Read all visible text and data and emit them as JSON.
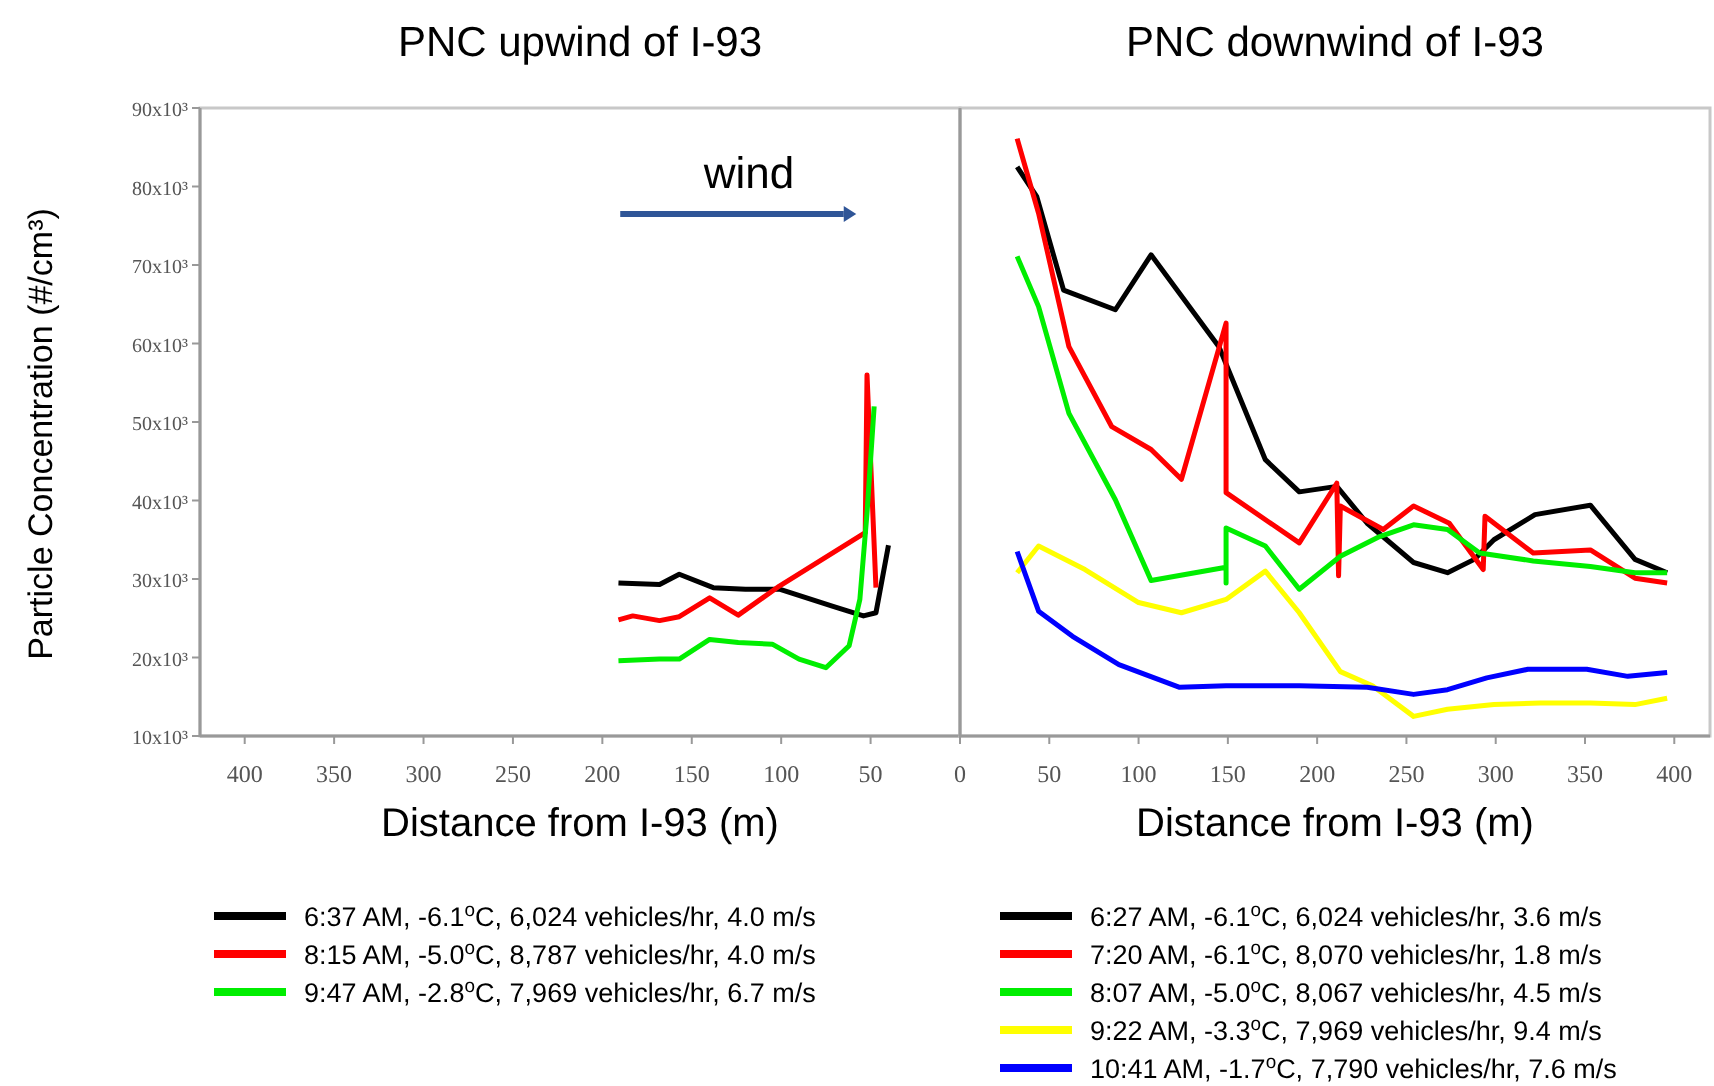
{
  "chart_data": [
    {
      "type": "line",
      "title": "PNC upwind of I-93",
      "xlabel": "Distance from I-93 (m)",
      "ylabel": "Particle Concentration (#/cm³)",
      "xlim": [
        425,
        0
      ],
      "xticks": [
        400,
        350,
        300,
        250,
        200,
        150,
        100,
        50
      ],
      "ylim": [
        10000,
        90000
      ],
      "yticks": [
        {
          "value": 10000,
          "label": "10x10³"
        },
        {
          "value": 20000,
          "label": "20x10³"
        },
        {
          "value": 30000,
          "label": "30x10³"
        },
        {
          "value": 40000,
          "label": "40x10³"
        },
        {
          "value": 50000,
          "label": "50x10³"
        },
        {
          "value": 60000,
          "label": "60x10³"
        },
        {
          "value": 70000,
          "label": "70x10³"
        },
        {
          "value": 80000,
          "label": "80x10³"
        },
        {
          "value": 90000,
          "label": "90x10³"
        }
      ],
      "annotations": [
        "wind"
      ],
      "legend": "bottom",
      "series": [
        {
          "name": "6:37 AM, -6.1$^{o}$C, 6,024 vehicles/hr, 4.0 m/s",
          "color": "#000000",
          "x": [
            191,
            168,
            157,
            138,
            120,
            101,
            71,
            54,
            47,
            40
          ],
          "values": [
            29500,
            29300,
            30600,
            28900,
            28700,
            28700,
            26500,
            25300,
            25700,
            34300
          ]
        },
        {
          "name": "8:15 AM, -5.0$^{o}$C, 8,787 vehicles/hr, 4.0 m/s",
          "color": "#ff0000",
          "x": [
            191,
            183,
            168,
            157,
            140,
            124,
            101,
            53,
            52,
            47
          ],
          "values": [
            24800,
            25300,
            24700,
            25200,
            27600,
            25400,
            29100,
            35900,
            56000,
            28900
          ]
        },
        {
          "name": "9:47 AM, -2.8$^{o}$C, 7,969 vehicles/hr, 6.7 m/s",
          "color": "#00ee00",
          "x": [
            191,
            168,
            157,
            140,
            124,
            105,
            90,
            75,
            62,
            56,
            52,
            48
          ],
          "values": [
            19600,
            19800,
            19800,
            22300,
            21900,
            21700,
            19800,
            18700,
            21500,
            27400,
            38400,
            52000
          ]
        }
      ]
    },
    {
      "type": "line",
      "title": "PNC downwind of I-93",
      "xlabel": "Distance from I-93 (m)",
      "xlim": [
        0,
        420
      ],
      "xticks": [
        0,
        50,
        100,
        150,
        200,
        250,
        300,
        350,
        400
      ],
      "ylim": [
        10000,
        90000
      ],
      "tick_labels": "x",
      "legend": "bottom",
      "series": [
        {
          "name": "6:27 AM, -6.1$^{o}$C, 6,024 vehicles/hr, 3.6 m/s",
          "color": "#000000",
          "x": [
            32,
            43,
            58,
            87,
            107,
            145,
            171,
            190,
            211,
            228,
            254,
            273,
            288,
            299,
            322,
            353,
            378,
            396
          ],
          "values": [
            82500,
            78700,
            66800,
            64300,
            71300,
            59600,
            45200,
            41100,
            41800,
            37100,
            32100,
            30800,
            32500,
            35000,
            38200,
            39400,
            32500,
            30800
          ]
        },
        {
          "name": "7:20 AM, -6.1$^{o}$C, 8,070 vehicles/hr, 1.8 m/s",
          "color": "#ff0000",
          "x": [
            32,
            44,
            61,
            85,
            107,
            124,
            149,
            149,
            190,
            211,
            212,
            213,
            237,
            254,
            274,
            293,
            294,
            321,
            353,
            378,
            396
          ],
          "values": [
            86100,
            76600,
            59600,
            49400,
            46500,
            42700,
            62600,
            41000,
            34600,
            42200,
            30400,
            39300,
            36300,
            39300,
            37100,
            31200,
            38000,
            33300,
            33700,
            30100,
            29500
          ]
        },
        {
          "name": "8:07 AM, -5.0$^{o}$C, 8,067 vehicles/hr, 4.5 m/s",
          "color": "#00ee00",
          "x": [
            32,
            44,
            61,
            87,
            107,
            149,
            149,
            149,
            171,
            190,
            213,
            235,
            254,
            273,
            291,
            321,
            353,
            378,
            396
          ],
          "values": [
            71100,
            64700,
            51100,
            40100,
            29800,
            31500,
            29500,
            36500,
            34200,
            28700,
            32900,
            35400,
            36900,
            36300,
            33300,
            32300,
            31600,
            30800,
            30800
          ]
        },
        {
          "name": "9:22 AM, -3.3$^{o}$C, 7,969 vehicles/hr, 9.4 m/s",
          "color": "#ffff00",
          "x": [
            32,
            44,
            70,
            100,
            124,
            149,
            171,
            190,
            213,
            231,
            254,
            273,
            299,
            325,
            353,
            378,
            396
          ],
          "values": [
            30800,
            34200,
            31200,
            27000,
            25700,
            27400,
            31000,
            25700,
            18200,
            16400,
            12500,
            13400,
            14000,
            14200,
            14200,
            14000,
            14800
          ]
        },
        {
          "name": "10:41 AM, -1.7$^{o}$C, 7,790 vehicles/hr, 7.6 m/s",
          "color": "#0000ff",
          "x": [
            32,
            44,
            63,
            89,
            123,
            149,
            190,
            228,
            254,
            273,
            295,
            318,
            351,
            374,
            396
          ],
          "values": [
            33500,
            25900,
            22700,
            19100,
            16200,
            16400,
            16400,
            16200,
            15300,
            15900,
            17400,
            18500,
            18500,
            17600,
            18100
          ]
        }
      ]
    }
  ]
}
